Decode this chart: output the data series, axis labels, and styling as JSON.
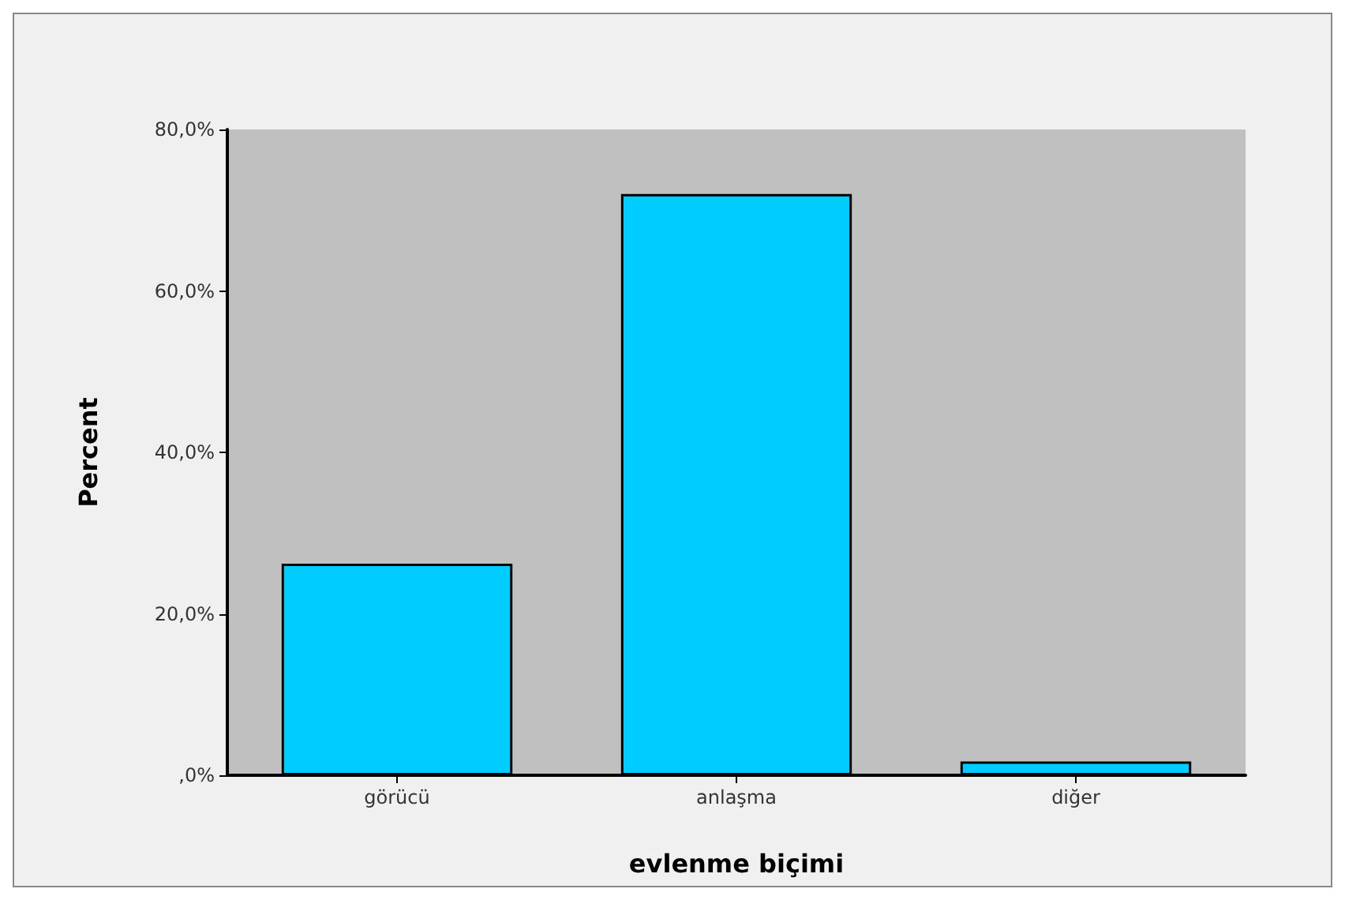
{
  "chart_data": {
    "type": "bar",
    "xlabel": "evlenme biçimi",
    "ylabel": "Percent",
    "categories": [
      "görücü",
      "anlaşma",
      "diğer"
    ],
    "values": [
      26.2,
      72.0,
      1.7
    ],
    "color": "#00ccff",
    "ylim": [
      0,
      80
    ],
    "yticks": [
      {
        "value": 0,
        "label": ",0%"
      },
      {
        "value": 20,
        "label": "20,0%"
      },
      {
        "value": 40,
        "label": "40,0%"
      },
      {
        "value": 60,
        "label": "60,0%"
      },
      {
        "value": 80,
        "label": "80,0%"
      }
    ],
    "grid": false
  }
}
